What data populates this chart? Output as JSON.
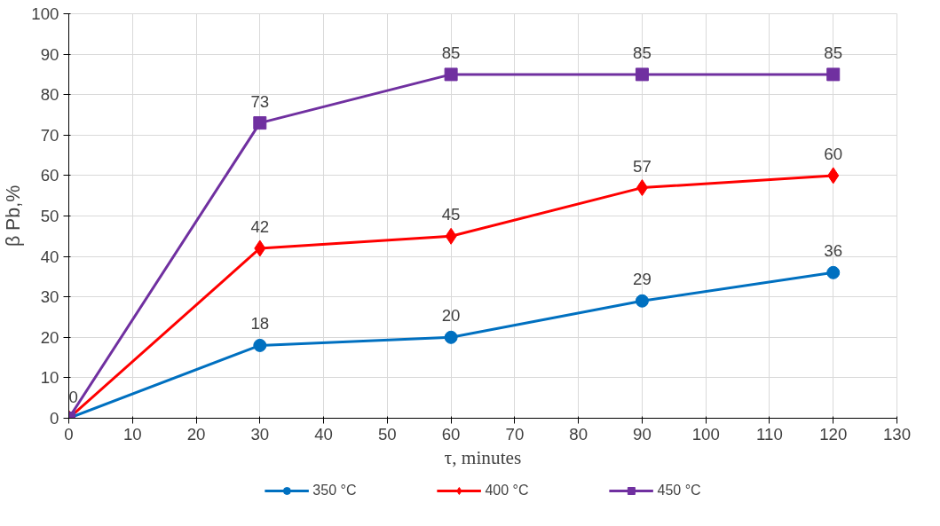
{
  "chart_data": {
    "type": "line",
    "xlabel": "τ, minutes",
    "ylabel": "β Pb,%",
    "x": [
      0,
      30,
      60,
      90,
      120
    ],
    "series": [
      {
        "name": "350 °C",
        "color": "#0070c0",
        "marker": "circle",
        "values": [
          0,
          18,
          20,
          29,
          36
        ],
        "value_labels": [
          null,
          "18",
          "20",
          "29",
          "36"
        ]
      },
      {
        "name": "400 °C",
        "color": "#ff0000",
        "marker": "diamond",
        "values": [
          0,
          42,
          45,
          57,
          60
        ],
        "value_labels": [
          "0",
          "42",
          "45",
          "57",
          "60"
        ]
      },
      {
        "name": "450 °C",
        "color": "#7030a0",
        "marker": "square",
        "values": [
          0,
          73,
          85,
          85,
          85
        ],
        "value_labels": [
          null,
          "73",
          "85",
          "85",
          "85"
        ]
      }
    ],
    "xlim": [
      0,
      130
    ],
    "xticks": [
      0,
      10,
      20,
      30,
      40,
      50,
      60,
      70,
      80,
      90,
      100,
      110,
      120,
      130
    ],
    "ylim": [
      0,
      100
    ],
    "yticks": [
      0,
      10,
      20,
      30,
      40,
      50,
      60,
      70,
      80,
      90,
      100
    ],
    "grid": true,
    "legend": "bottom"
  }
}
